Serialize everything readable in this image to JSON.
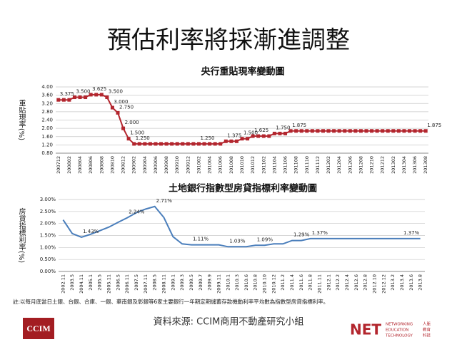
{
  "slide": {
    "title": "預估利率將採漸進調整",
    "footnote": "註:以每月底當日土銀、台銀、合庫、一銀、華南銀及彰銀等6家主要銀行一年期定期儲蓄存款機動利率平均數為指數型房貸指標利率。",
    "source": "資料來源: CCIM商用不動產研究小組",
    "logo_left": "CCIM",
    "logo_right": "NET",
    "logo_right_en": [
      "NETWORKING",
      "EDUCATION",
      "TECHNOLOGY"
    ],
    "logo_right_zh": [
      "人脈",
      "教育",
      "科技"
    ]
  },
  "chart_data": [
    {
      "type": "line",
      "title": "央行重貼現率變動圖",
      "y_label": "重貼現率(%)",
      "color": "#b3262e",
      "markers": true,
      "grid": true,
      "categories": [
        "200712",
        null,
        "200802",
        null,
        "200804",
        null,
        "200806",
        null,
        "200808",
        null,
        "200810",
        null,
        "200812",
        null,
        "200902",
        null,
        "200904",
        null,
        "200906",
        null,
        "200908",
        null,
        "200910",
        null,
        "200912",
        null,
        "201002",
        null,
        "201004",
        null,
        "201006",
        null,
        "201008",
        null,
        "201010",
        null,
        "201012",
        null,
        "201102",
        null,
        "201104",
        null,
        "201106",
        null,
        "201108",
        null,
        "201110",
        null,
        "201112",
        null,
        "201202",
        null,
        "201204",
        null,
        "201206",
        null,
        "201208",
        null,
        "201210",
        null,
        "201212",
        null,
        "201302",
        null,
        "201304",
        null,
        "201306",
        null,
        "201308"
      ],
      "values": [
        3.375,
        3.375,
        3.375,
        3.5,
        3.5,
        3.5,
        3.625,
        3.625,
        3.625,
        3.5,
        3.0,
        2.75,
        2.0,
        1.5,
        1.25,
        1.25,
        1.25,
        1.25,
        1.25,
        1.25,
        1.25,
        1.25,
        1.25,
        1.25,
        1.25,
        1.25,
        1.25,
        1.25,
        1.25,
        1.25,
        1.25,
        1.375,
        1.375,
        1.375,
        1.5,
        1.5,
        1.625,
        1.625,
        1.625,
        1.625,
        1.75,
        1.75,
        1.75,
        1.875,
        1.875,
        1.875,
        1.875,
        1.875,
        1.875,
        1.875,
        1.875,
        1.875,
        1.875,
        1.875,
        1.875,
        1.875,
        1.875,
        1.875,
        1.875,
        1.875,
        1.875,
        1.875,
        1.875,
        1.875,
        1.875,
        1.875,
        1.875,
        1.875,
        1.875
      ],
      "value_labels": [
        "3.375",
        null,
        null,
        "3.500",
        null,
        null,
        "3.625",
        null,
        null,
        "3.500",
        "3.000",
        "2.750",
        "2.000",
        "1.500",
        "1.250",
        null,
        null,
        null,
        null,
        null,
        null,
        null,
        null,
        null,
        null,
        null,
        "1.250",
        null,
        null,
        null,
        null,
        "1.375",
        null,
        null,
        "1.500",
        null,
        "1.625",
        null,
        null,
        null,
        "1.750",
        null,
        null,
        "1.875",
        null,
        null,
        null,
        null,
        null,
        null,
        null,
        null,
        null,
        null,
        null,
        null,
        null,
        null,
        null,
        null,
        null,
        null,
        null,
        null,
        null,
        null,
        null,
        null,
        "1.875"
      ],
      "ylim": [
        0.8,
        4
      ],
      "yticks": [
        {
          "value": 0.8,
          "label": "0.80"
        },
        {
          "value": 1.2,
          "label": "1.20"
        },
        {
          "value": 1.6,
          "label": "1.60"
        },
        {
          "value": 2,
          "label": "2.00"
        },
        {
          "value": 2.4,
          "label": "2.40"
        },
        {
          "value": 2.8,
          "label": "2.80"
        },
        {
          "value": 3.2,
          "label": "3.20"
        },
        {
          "value": 3.6,
          "label": "3.60"
        },
        {
          "value": 4,
          "label": "4.00"
        }
      ]
    },
    {
      "type": "line",
      "title": "土地銀行指數型房貸指標利率變動圖",
      "y_label": "房貸指標利率(%)",
      "color": "#4a7ebb",
      "markers": false,
      "grid": true,
      "categories": [
        "2002.11",
        "2003.5",
        "2004.11",
        "2005.1",
        "2005.5",
        "2005.11",
        "2006.5",
        "2006.11",
        "2007.5",
        "2007.11",
        "2008.5",
        "2008.11",
        "2009.1",
        "2009.3",
        "2009.5",
        "2009.7",
        "2009.9",
        "2009.11",
        "2010.1",
        "2010.3",
        "2010.6",
        "2010.8",
        "2010.10",
        "2010.12",
        "2011.2",
        "2011.4",
        "2011.6",
        "2011.8",
        "2011.11",
        "2012.1",
        "2012.2",
        "2012.4",
        "2012.6",
        "2012.8",
        "2012.10",
        "2012.12",
        "2013.2",
        "2013.4",
        "2013.6",
        "2013.8"
      ],
      "values": [
        2.15,
        1.58,
        1.43,
        1.55,
        1.7,
        1.85,
        2.05,
        2.24,
        2.45,
        2.6,
        2.71,
        2.25,
        1.45,
        1.15,
        1.11,
        1.11,
        1.11,
        1.11,
        1.03,
        1.03,
        1.03,
        1.09,
        1.09,
        1.15,
        1.15,
        1.29,
        1.29,
        1.37,
        1.37,
        1.37,
        1.37,
        1.37,
        1.37,
        1.37,
        1.37,
        1.37,
        1.37,
        1.37,
        1.37,
        1.37
      ],
      "value_labels": [
        null,
        null,
        "1.43%",
        null,
        null,
        null,
        null,
        "2.24%",
        null,
        null,
        "2.71%",
        null,
        null,
        null,
        "1.11%",
        null,
        null,
        null,
        "1.03%",
        null,
        null,
        "1.09%",
        null,
        null,
        null,
        "1.29%",
        null,
        "1.37%",
        null,
        null,
        null,
        null,
        null,
        null,
        null,
        null,
        null,
        "1.37%",
        null,
        null
      ],
      "ylim": [
        0,
        3
      ],
      "yticks": [
        {
          "value": 0,
          "label": "0.00%"
        },
        {
          "value": 0.5,
          "label": "0.50%"
        },
        {
          "value": 1,
          "label": "1.00%"
        },
        {
          "value": 1.5,
          "label": "1.50%"
        },
        {
          "value": 2,
          "label": "2.00%"
        },
        {
          "value": 2.5,
          "label": "2.50%"
        },
        {
          "value": 3,
          "label": "3.00%"
        }
      ]
    }
  ]
}
